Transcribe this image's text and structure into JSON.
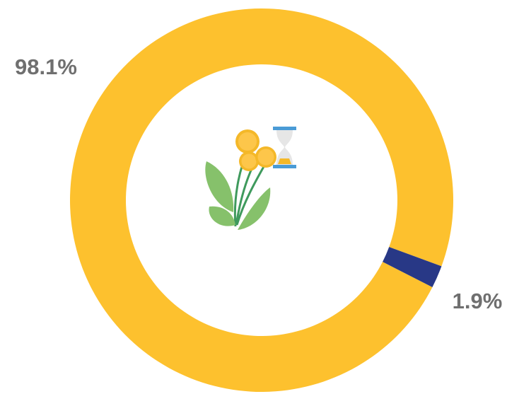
{
  "chart_data": {
    "type": "donut",
    "categories": [
      null,
      null
    ],
    "values": [
      98.1,
      1.9
    ],
    "value_labels": [
      "98.1%",
      "1.9%"
    ],
    "colors": [
      "#fdc12e",
      "#283886"
    ]
  }
}
